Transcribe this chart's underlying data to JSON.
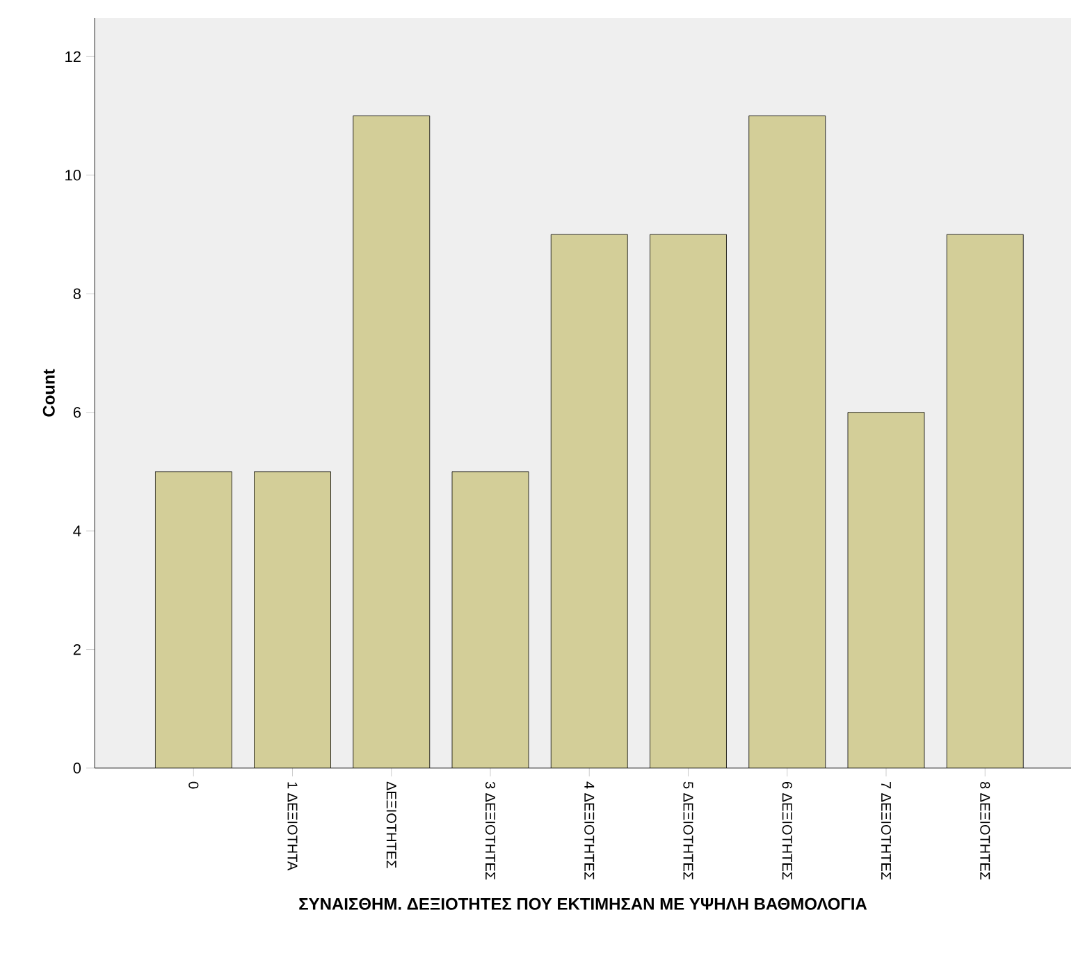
{
  "chart_data": {
    "type": "bar",
    "xlabel": "ΣΥΝΑΙΣΘΗΜ. ΔΕΞΙΟΤΗΤΕΣ ΠΟΥ ΕΚΤΙΜΗΣΑΝ ΜΕ ΥΨΗΛΗ ΒΑΘΜΟΛΟΓΙΑ",
    "ylabel": "Count",
    "categories": [
      "0",
      "1 ΔΕΞΙΟΤΗΤΑ",
      "ΔΕΞΙΟΤΗΤΕΣ",
      "3 ΔΕΞΙΟΤΗΤΕΣ",
      "4 ΔΕΞΙΟΤΗΤΕΣ",
      "5 ΔΕΞΙΟΤΗΤΕΣ",
      "6 ΔΕΞΙΟΤΗΤΕΣ",
      "7 ΔΕΞΙΟΤΗΤΕΣ",
      "8 ΔΕΞΙΟΤΗΤΕΣ"
    ],
    "values": [
      5,
      5,
      11,
      5,
      9,
      9,
      11,
      6,
      9
    ],
    "color": "#d3ce98",
    "ylim": [
      0,
      12.65
    ],
    "yticks": [
      0,
      2,
      4,
      6,
      8,
      10,
      12
    ],
    "grid": false
  }
}
